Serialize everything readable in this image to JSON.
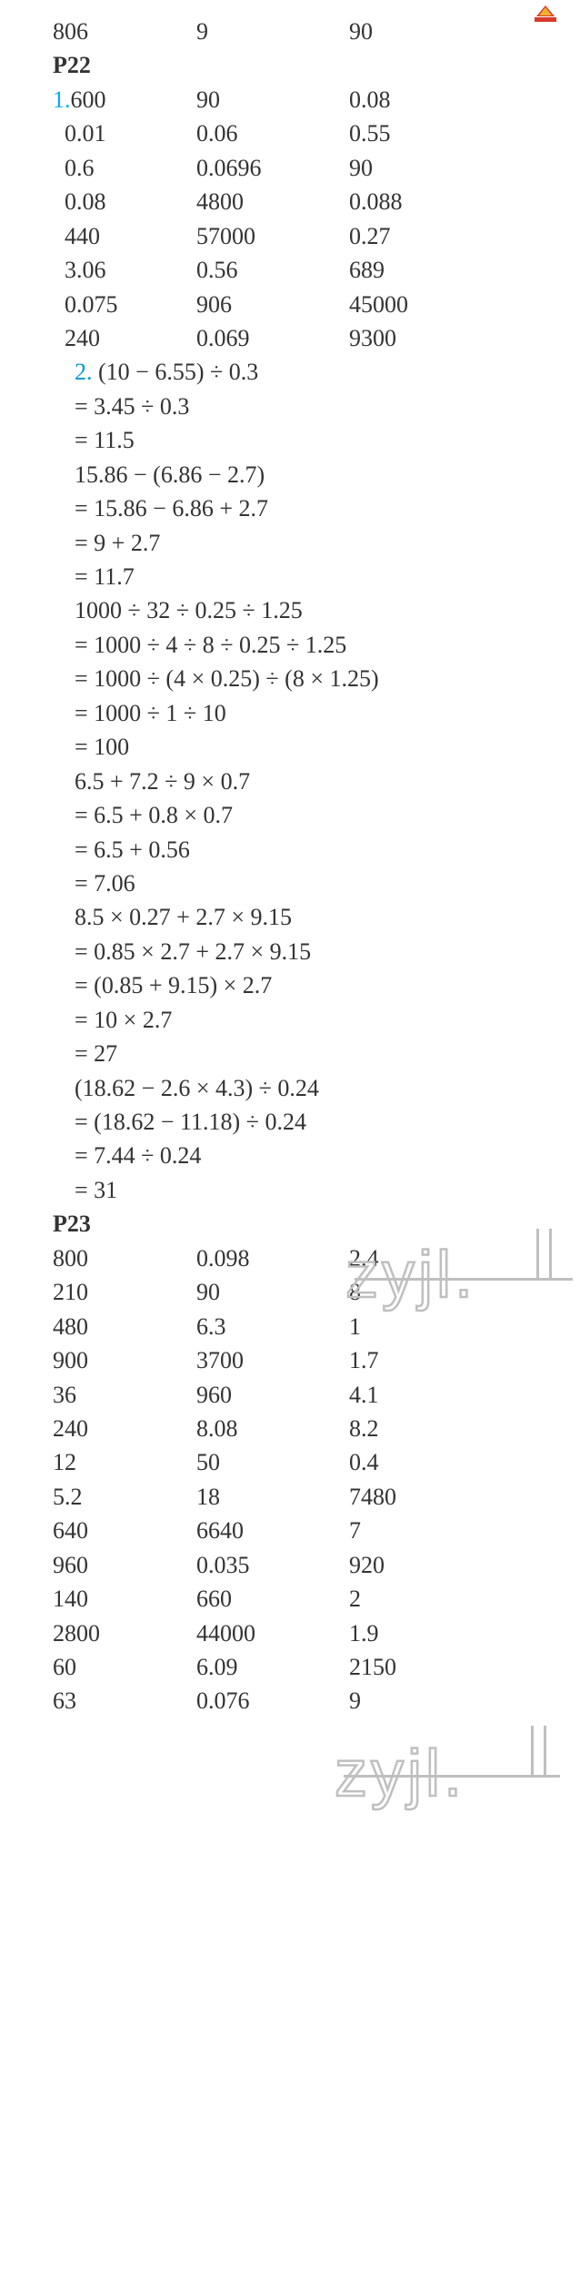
{
  "top_row": [
    "806",
    "9",
    "90"
  ],
  "p22": {
    "heading": "P22",
    "q1_marker": "1.",
    "q1_rows": [
      [
        "600",
        "90",
        "0.08"
      ],
      [
        "0.01",
        "0.06",
        "0.55"
      ],
      [
        "0.6",
        "0.0696",
        "90"
      ],
      [
        "0.08",
        "4800",
        "0.088"
      ],
      [
        "440",
        "57000",
        "0.27"
      ],
      [
        "3.06",
        "0.56",
        "689"
      ],
      [
        "0.075",
        "906",
        "45000"
      ],
      [
        "240",
        "0.069",
        "9300"
      ]
    ],
    "q2_marker": "2.",
    "q2_lines": [
      "    (10 − 6.55) ÷ 0.3",
      "= 3.45 ÷ 0.3",
      "= 11.5",
      "    15.86 − (6.86 − 2.7)",
      "= 15.86 − 6.86 + 2.7",
      "= 9 + 2.7",
      "= 11.7",
      "    1000 ÷ 32 ÷ 0.25 ÷ 1.25",
      "= 1000 ÷ 4 ÷ 8 ÷ 0.25 ÷ 1.25",
      "= 1000 ÷ (4 × 0.25) ÷ (8 × 1.25)",
      "= 1000 ÷ 1 ÷ 10",
      "= 100",
      "    6.5 + 7.2 ÷ 9 × 0.7",
      "= 6.5 + 0.8 × 0.7",
      "= 6.5 + 0.56",
      "= 7.06",
      "    8.5 × 0.27 + 2.7 × 9.15",
      "= 0.85 × 2.7 + 2.7 × 9.15",
      "= (0.85 + 9.15) × 2.7",
      "= 10 × 2.7",
      "= 27",
      "    (18.62 − 2.6 × 4.3) ÷ 0.24",
      "= (18.62 − 11.18) ÷ 0.24",
      "= 7.44 ÷ 0.24",
      "= 31"
    ]
  },
  "p23": {
    "heading": "P23",
    "rows": [
      [
        "800",
        "0.098",
        "2.4"
      ],
      [
        "210",
        "90",
        "8"
      ],
      [
        "480",
        "6.3",
        "1"
      ],
      [
        "900",
        "3700",
        "1.7"
      ],
      [
        "36",
        "960",
        "4.1"
      ],
      [
        "240",
        "8.08",
        "8.2"
      ],
      [
        "12",
        "50",
        "0.4"
      ],
      [
        "5.2",
        "18",
        "7480"
      ],
      [
        "640",
        "6640",
        "7"
      ],
      [
        "960",
        "0.035",
        "920"
      ],
      [
        "140",
        "660",
        "2"
      ],
      [
        "2800",
        "44000",
        "1.9"
      ],
      [
        "60",
        "6.09",
        "2150"
      ],
      [
        "63",
        "0.076",
        "9"
      ]
    ]
  },
  "watermark_text": "zyjl."
}
